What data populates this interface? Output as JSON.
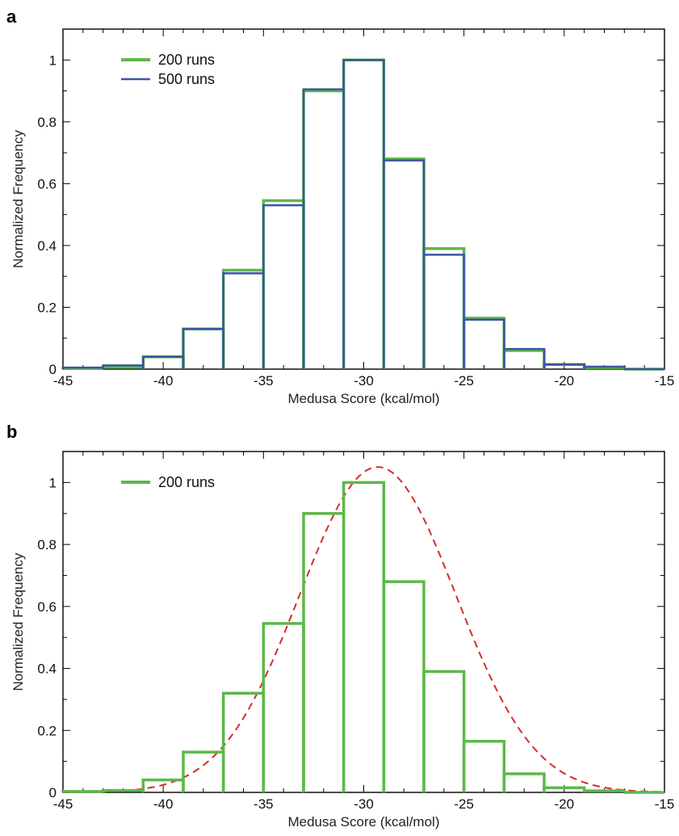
{
  "chart_data": [
    {
      "panel_label": "a",
      "type": "histogram",
      "xlabel": "Medusa Score (kcal/mol)",
      "ylabel": "Normalized Frequency",
      "xlim": [
        -45,
        -15
      ],
      "ylim": [
        0,
        1.1
      ],
      "xticks": [
        -45,
        -40,
        -35,
        -30,
        -25,
        -20,
        -15
      ],
      "yticks": [
        0,
        0.2,
        0.4,
        0.6,
        0.8,
        1
      ],
      "ytick_labels": [
        "0",
        "0.2",
        "0.4",
        "0.6",
        "0.8",
        "1"
      ],
      "legend_position": "top-left",
      "bin_edges": [
        -45,
        -43,
        -41,
        -39,
        -37,
        -35,
        -33,
        -31,
        -29,
        -27,
        -25,
        -23,
        -21,
        -19,
        -17,
        -15
      ],
      "series": [
        {
          "name": "200 runs",
          "color": "#5cb84a",
          "values": [
            0.003,
            0.006,
            0.04,
            0.13,
            0.32,
            0.545,
            0.9,
            1.0,
            0.68,
            0.39,
            0.165,
            0.06,
            0.015,
            0.005,
            0.0
          ]
        },
        {
          "name": "500 runs",
          "color": "#3a55a0",
          "values": [
            0.005,
            0.012,
            0.04,
            0.13,
            0.31,
            0.53,
            0.905,
            1.0,
            0.675,
            0.37,
            0.16,
            0.065,
            0.015,
            0.008,
            0.0
          ]
        }
      ]
    },
    {
      "panel_label": "b",
      "type": "histogram",
      "xlabel": "Medusa Score (kcal/mol)",
      "ylabel": "Normalized Frequency",
      "xlim": [
        -45,
        -15
      ],
      "ylim": [
        0,
        1.1
      ],
      "xticks": [
        -45,
        -40,
        -35,
        -30,
        -25,
        -20,
        -15
      ],
      "yticks": [
        0,
        0.2,
        0.4,
        0.6,
        0.8,
        1
      ],
      "ytick_labels": [
        "0",
        "0.2",
        "0.4",
        "0.6",
        "0.8",
        "1"
      ],
      "legend_position": "top-left",
      "bin_edges": [
        -45,
        -43,
        -41,
        -39,
        -37,
        -35,
        -33,
        -31,
        -29,
        -27,
        -25,
        -23,
        -21,
        -19,
        -17,
        -15
      ],
      "series": [
        {
          "name": "200 runs",
          "color": "#5cb84a",
          "values": [
            0.003,
            0.006,
            0.04,
            0.13,
            0.32,
            0.545,
            0.9,
            1.0,
            0.68,
            0.39,
            0.165,
            0.06,
            0.015,
            0.005,
            0.0
          ]
        }
      ],
      "fit_curve": {
        "type": "gaussian",
        "color": "#d62b2b",
        "style": "dashed",
        "amplitude": 1.05,
        "mean": -29.3,
        "sigma": 3.9
      }
    }
  ]
}
